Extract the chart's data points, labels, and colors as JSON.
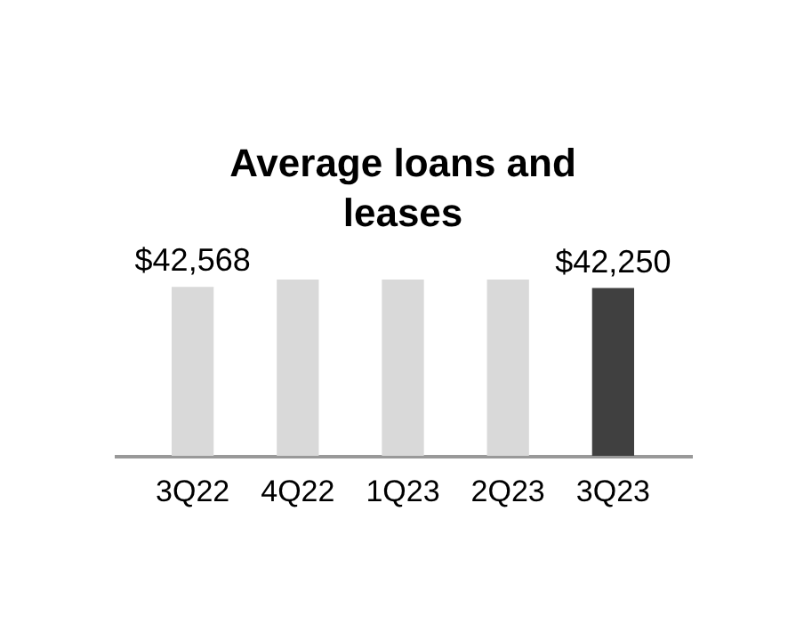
{
  "chart_data": {
    "type": "bar",
    "title": "Average loans and leases",
    "categories": [
      "3Q22",
      "4Q22",
      "1Q23",
      "2Q23",
      "3Q23"
    ],
    "values": [
      42568,
      44400,
      44400,
      44400,
      42250
    ],
    "colors": [
      "#d9d9d9",
      "#d9d9d9",
      "#d9d9d9",
      "#d9d9d9",
      "#404040"
    ],
    "value_labels": [
      "$42,568",
      null,
      null,
      null,
      "$42,250"
    ]
  }
}
